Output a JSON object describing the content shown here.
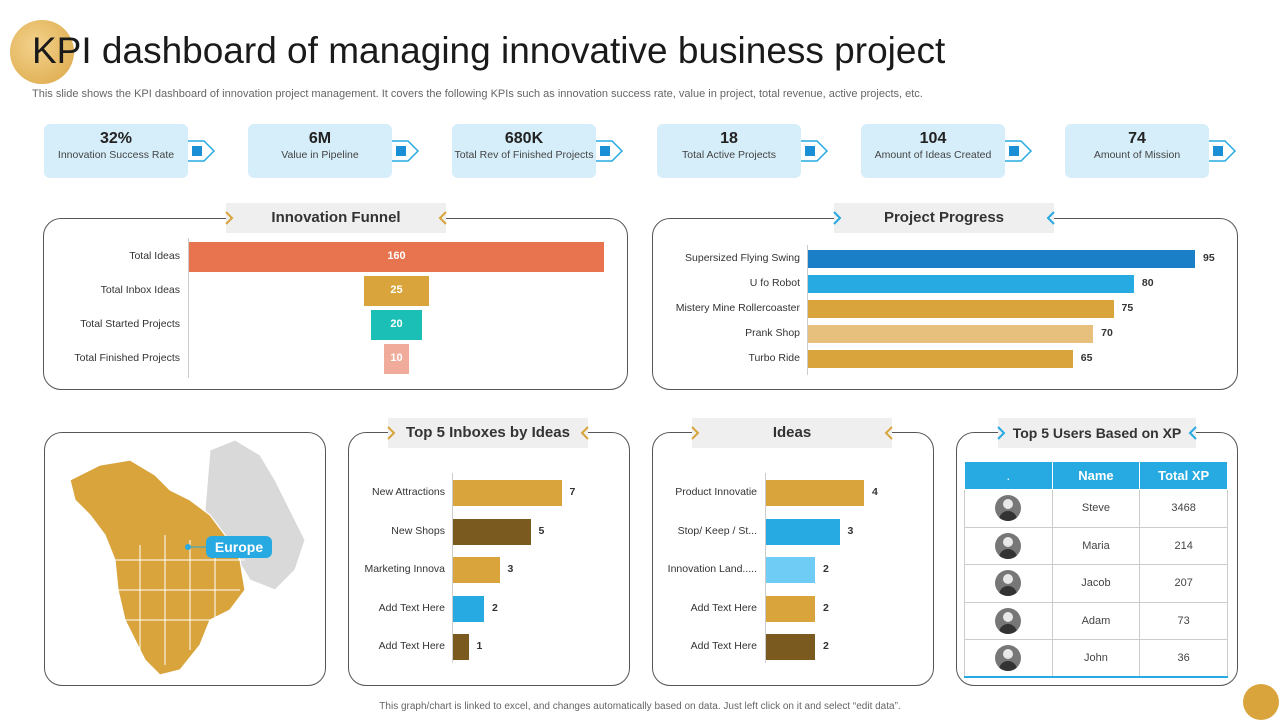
{
  "title": "KPI dashboard of managing innovative business project",
  "subtitle": "This slide shows the KPI dashboard of innovation project management. It covers the following KPIs such as innovation success rate, value in project, total revenue, active projects, etc.",
  "kpis": [
    {
      "value": "32%",
      "label": "Innovation Success Rate"
    },
    {
      "value": "6M",
      "label": "Value in Pipeline"
    },
    {
      "value": "680K",
      "label": "Total Rev of Finished Projects"
    },
    {
      "value": "18",
      "label": "Total Active Projects"
    },
    {
      "value": "104",
      "label": "Amount of Ideas Created"
    },
    {
      "value": "74",
      "label": "Amount of Mission"
    }
  ],
  "panels": {
    "funnel_title": "Innovation Funnel",
    "progress_title": "Project Progress",
    "inboxes_title": "Top 5 Inboxes by Ideas",
    "ideas_title": "Ideas",
    "users_title": "Top 5 Users Based on XP"
  },
  "map": {
    "label": "Europe"
  },
  "users_table": {
    "headers": [
      ".",
      "Name",
      "Total XP"
    ],
    "rows": [
      {
        "name": "Steve",
        "xp": "3468"
      },
      {
        "name": "Maria",
        "xp": "214"
      },
      {
        "name": "Jacob",
        "xp": "207"
      },
      {
        "name": "Adam",
        "xp": "73"
      },
      {
        "name": "John",
        "xp": "36"
      }
    ]
  },
  "footer": "This graph/chart is linked to excel, and changes automatically based on data. Just left click on it and select “edit data”.",
  "colors": {
    "accent_blue": "#27aae1",
    "gold": "#d9a43c",
    "brown": "#7a5a1e",
    "orange": "#e8734f",
    "teal": "#1bbfb5",
    "pink": "#f0ab9a",
    "light_blue": "#6fcdf5",
    "light_gold": "#e8c07e",
    "dark_blue": "#1a7fc7"
  },
  "chart_data": [
    {
      "type": "bar",
      "name": "innovation-funnel",
      "categories": [
        "Total Ideas",
        "Total Inbox Ideas",
        "Total Started Projects",
        "Total Finished Projects"
      ],
      "values": [
        160,
        25,
        20,
        10
      ]
    },
    {
      "type": "bar",
      "name": "project-progress",
      "categories": [
        "Supersized Flying Swing",
        "U fo Robot",
        "Mistery Mine Rollercoaster",
        "Prank Shop",
        "Turbo Ride"
      ],
      "values": [
        95,
        80,
        75,
        70,
        65
      ]
    },
    {
      "type": "bar",
      "name": "top-inboxes",
      "categories": [
        "New Attractions",
        "New Shops",
        "Marketing Innova",
        "Add Text Here",
        "Add Text Here"
      ],
      "values": [
        7,
        5,
        3,
        2,
        1
      ]
    },
    {
      "type": "bar",
      "name": "ideas",
      "categories": [
        "Product Innovatie",
        "Stop/ Keep / St...",
        "Innovation Land.....",
        "Add Text Here",
        "Add Text Here"
      ],
      "values": [
        4,
        3,
        2,
        2,
        2
      ]
    }
  ]
}
